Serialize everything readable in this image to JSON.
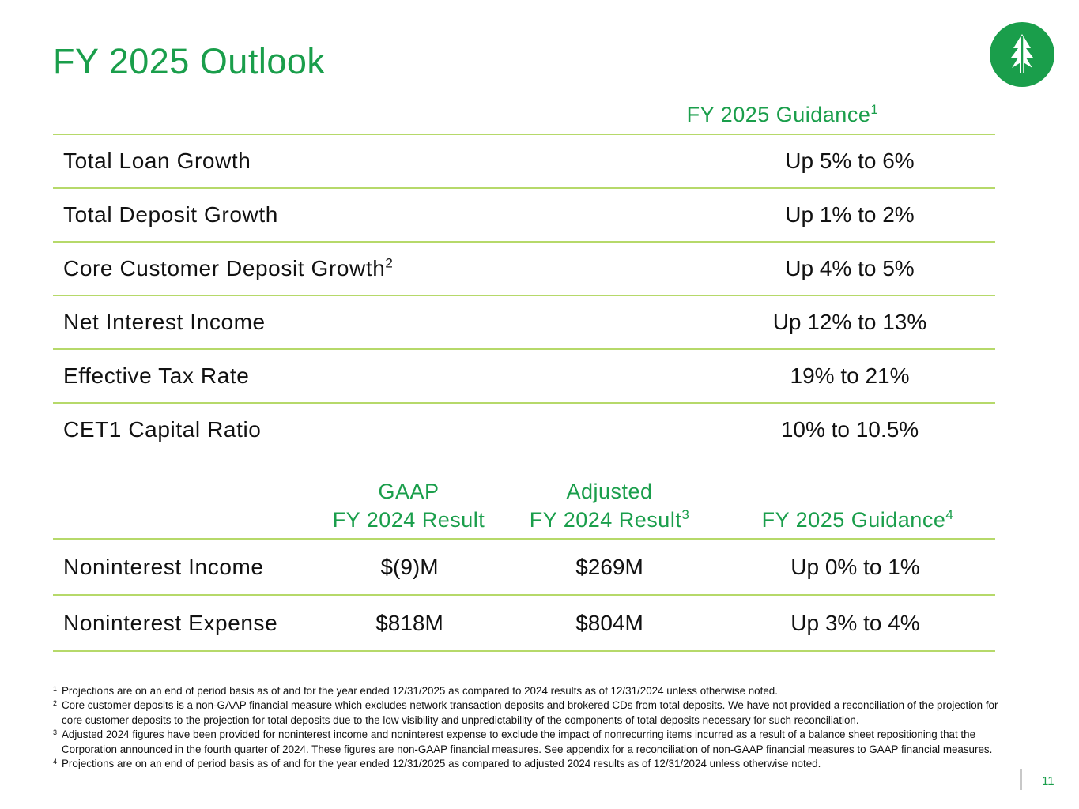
{
  "title": "FY 2025 Outlook",
  "logo_icon": "tree-logo-icon",
  "colors": {
    "brand_green": "#1a9e4b",
    "rule_green": "#b6d96a"
  },
  "table1": {
    "header": {
      "label": "FY 2025 Guidance",
      "sup": "1"
    },
    "rows": [
      {
        "label": "Total Loan Growth",
        "sup": "",
        "value": "Up 5% to 6%"
      },
      {
        "label": "Total Deposit Growth",
        "sup": "",
        "value": "Up 1% to 2%"
      },
      {
        "label": "Core Customer Deposit Growth",
        "sup": "2",
        "value": "Up 4% to 5%"
      },
      {
        "label": "Net Interest Income",
        "sup": "",
        "value": "Up 12% to 13%"
      },
      {
        "label": "Effective Tax Rate",
        "sup": "",
        "value": "19% to 21%"
      },
      {
        "label": "CET1 Capital Ratio",
        "sup": "",
        "value": "10% to 10.5%"
      }
    ]
  },
  "table2": {
    "headers": {
      "gaap_line1": "GAAP",
      "gaap_line2": "FY 2024 Result",
      "adj_line1": "Adjusted",
      "adj_line2": "FY 2024 Result",
      "adj_sup": "3",
      "guidance": "FY 2025 Guidance",
      "guidance_sup": "4"
    },
    "rows": [
      {
        "label": "Noninterest Income",
        "gaap": "$(9)M",
        "adjusted": "$269M",
        "guidance": "Up 0% to 1%"
      },
      {
        "label": "Noninterest Expense",
        "gaap": "$818M",
        "adjusted": "$804M",
        "guidance": "Up 3% to 4%"
      }
    ]
  },
  "footnotes": [
    {
      "num": "1",
      "text": "Projections are on an end of period basis as of and for the year ended 12/31/2025 as compared to 2024 results as of 12/31/2024 unless otherwise noted."
    },
    {
      "num": "2",
      "text": "Core customer deposits is a non-GAAP financial measure which excludes network transaction deposits and brokered CDs from total deposits. We have not provided a reconciliation of the projection for core customer deposits to the projection for total deposits due to the low visibility and unpredictability of the components of total deposits necessary for such reconciliation."
    },
    {
      "num": "3",
      "text": "Adjusted 2024 figures have been provided for noninterest income and noninterest expense to exclude the impact of nonrecurring items incurred as a result of a balance sheet repositioning that the Corporation announced in the fourth quarter of 2024. These figures are non-GAAP financial measures. See appendix for a reconciliation of non-GAAP financial measures to GAAP financial measures."
    },
    {
      "num": "4",
      "text": "Projections are on an end of period basis as of and for the year ended 12/31/2025 as compared to adjusted 2024 results as of 12/31/2024 unless otherwise noted."
    }
  ],
  "page_number": "11"
}
